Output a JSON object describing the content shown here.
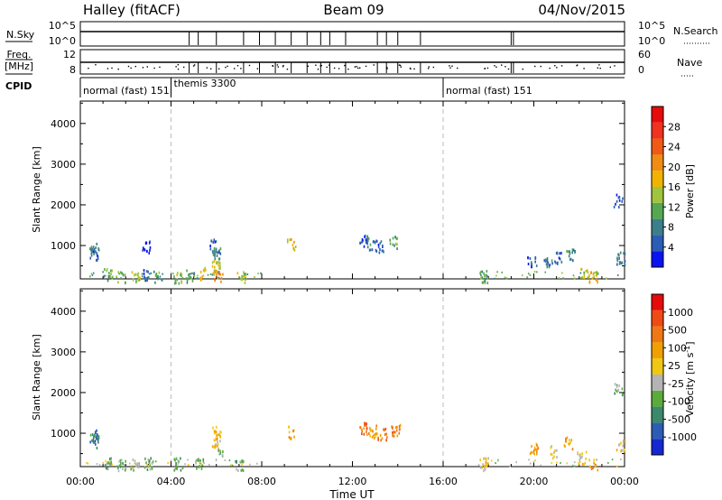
{
  "header": {
    "title_left": "Halley (fitACF)",
    "title_center": "Beam 09",
    "title_right": "04/Nov/2015"
  },
  "noise_panel": {
    "left_label": "N.Sky",
    "left_ticks": [
      "10^5",
      "10^0"
    ],
    "right_label": "N.Search",
    "right_ticks": [
      "10^5",
      "10^0"
    ]
  },
  "freq_panel": {
    "left_label_line1": "Freq.",
    "left_label_line2": "[MHz]",
    "left_ticks": [
      "12",
      "8"
    ],
    "right_label": "Nave",
    "right_ticks": [
      "60",
      "0"
    ]
  },
  "cpid": {
    "label": "CPID",
    "segments": [
      {
        "label": "normal (fast) 151",
        "start_hour": 0
      },
      {
        "label": "themis 3300",
        "start_hour": 4
      },
      {
        "label": "normal (fast) 151",
        "start_hour": 16
      }
    ]
  },
  "time_axis": {
    "label": "Time UT",
    "ticks": [
      "00:00",
      "04:00",
      "08:00",
      "12:00",
      "16:00",
      "20:00",
      "00:00"
    ],
    "range_hours": [
      0,
      24
    ],
    "dashed_lines_hours": [
      4,
      16
    ]
  },
  "chart_data": [
    {
      "type": "heatmap",
      "name": "power",
      "ylabel": "Slant Range [km]",
      "yticks": [
        "1000",
        "2000",
        "3000",
        "4000"
      ],
      "ylim": [
        180,
        4550
      ],
      "colorbar": {
        "label": "Power [dB]",
        "labels": [
          "4",
          "8",
          "12",
          "16",
          "20",
          "24",
          "28"
        ],
        "colors": [
          "#0a14f0",
          "#2c5db4",
          "#3a7f8a",
          "#55a850",
          "#a0c43c",
          "#f0b400",
          "#f08c14",
          "#f05a14",
          "#f0321e",
          "#e60a0a"
        ]
      },
      "clusters": [
        {
          "x": 0.6,
          "y": 800,
          "v": 1
        },
        {
          "x": 0.6,
          "y": 930,
          "v": 2
        },
        {
          "x": 1.2,
          "y": 300,
          "v": 3
        },
        {
          "x": 1.8,
          "y": 250,
          "v": 3
        },
        {
          "x": 2.4,
          "y": 280,
          "v": 4
        },
        {
          "x": 2.9,
          "y": 300,
          "v": 1
        },
        {
          "x": 2.9,
          "y": 990,
          "v": 0
        },
        {
          "x": 3.4,
          "y": 270,
          "v": 3
        },
        {
          "x": 4.3,
          "y": 250,
          "v": 4
        },
        {
          "x": 4.8,
          "y": 270,
          "v": 3
        },
        {
          "x": 5.3,
          "y": 320,
          "v": 5
        },
        {
          "x": 5.9,
          "y": 1020,
          "v": 1
        },
        {
          "x": 6.0,
          "y": 850,
          "v": 2
        },
        {
          "x": 6.0,
          "y": 500,
          "v": 4
        },
        {
          "x": 6.1,
          "y": 260,
          "v": 6
        },
        {
          "x": 7.1,
          "y": 240,
          "v": 4
        },
        {
          "x": 9.3,
          "y": 1060,
          "v": 5
        },
        {
          "x": 12.5,
          "y": 1120,
          "v": 1
        },
        {
          "x": 12.8,
          "y": 1070,
          "v": 2
        },
        {
          "x": 13.2,
          "y": 1000,
          "v": 1
        },
        {
          "x": 13.8,
          "y": 1100,
          "v": 3
        },
        {
          "x": 17.8,
          "y": 260,
          "v": 3
        },
        {
          "x": 19.9,
          "y": 620,
          "v": 1
        },
        {
          "x": 20.6,
          "y": 560,
          "v": 2
        },
        {
          "x": 21.0,
          "y": 720,
          "v": 1
        },
        {
          "x": 21.6,
          "y": 790,
          "v": 2
        },
        {
          "x": 22.2,
          "y": 350,
          "v": 4
        },
        {
          "x": 22.6,
          "y": 270,
          "v": 5
        },
        {
          "x": 23.7,
          "y": 2120,
          "v": 1
        },
        {
          "x": 23.8,
          "y": 700,
          "v": 2
        }
      ]
    },
    {
      "type": "heatmap",
      "name": "velocity",
      "ylabel": "Slant Range [km]",
      "yticks": [
        "1000",
        "2000",
        "3000",
        "4000"
      ],
      "ylim": [
        180,
        4550
      ],
      "colorbar": {
        "label": "Velocity [m s",
        "label_sup": "-1",
        "label_end": "]",
        "labels": [
          "1000",
          "500",
          "100",
          "25",
          "-25",
          "-100",
          "-500",
          "-1000"
        ],
        "colors": [
          "#1428d2",
          "#2c5db4",
          "#3a8a6a",
          "#5aaa3c",
          "#b4b4b4",
          "#f0c814",
          "#f0a000",
          "#f07814",
          "#f04a14",
          "#e60a0a"
        ]
      },
      "clusters": [
        {
          "x": 0.6,
          "y": 820,
          "v": 1
        },
        {
          "x": 0.6,
          "y": 950,
          "v": 2
        },
        {
          "x": 1.2,
          "y": 300,
          "v": 3
        },
        {
          "x": 1.8,
          "y": 250,
          "v": 3
        },
        {
          "x": 2.4,
          "y": 270,
          "v": 4
        },
        {
          "x": 3.0,
          "y": 290,
          "v": 3
        },
        {
          "x": 4.3,
          "y": 260,
          "v": 3
        },
        {
          "x": 5.2,
          "y": 300,
          "v": 3
        },
        {
          "x": 6.0,
          "y": 1040,
          "v": 6
        },
        {
          "x": 6.0,
          "y": 800,
          "v": 5
        },
        {
          "x": 6.1,
          "y": 500,
          "v": 3
        },
        {
          "x": 7.0,
          "y": 240,
          "v": 3
        },
        {
          "x": 9.3,
          "y": 1050,
          "v": 6
        },
        {
          "x": 12.5,
          "y": 1130,
          "v": 7
        },
        {
          "x": 12.9,
          "y": 1060,
          "v": 6
        },
        {
          "x": 13.3,
          "y": 1010,
          "v": 7
        },
        {
          "x": 13.9,
          "y": 1110,
          "v": 7
        },
        {
          "x": 17.8,
          "y": 260,
          "v": 5
        },
        {
          "x": 20.0,
          "y": 620,
          "v": 6
        },
        {
          "x": 20.8,
          "y": 560,
          "v": 5
        },
        {
          "x": 21.5,
          "y": 780,
          "v": 6
        },
        {
          "x": 22.1,
          "y": 420,
          "v": 5
        },
        {
          "x": 22.6,
          "y": 270,
          "v": 6
        },
        {
          "x": 23.7,
          "y": 2120,
          "v": 3
        },
        {
          "x": 23.8,
          "y": 720,
          "v": 5
        }
      ]
    }
  ]
}
